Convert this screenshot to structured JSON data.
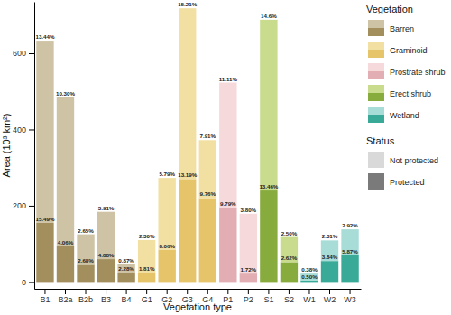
{
  "chart_data": {
    "type": "bar",
    "stacked": true,
    "x_label": "Vegetation type",
    "y_label": "Area (10³ km²)",
    "categories": [
      "B1",
      "B2a",
      "B2b",
      "B3",
      "B4",
      "G1",
      "G2",
      "G3",
      "G4",
      "P1",
      "P2",
      "S1",
      "S2",
      "W1",
      "W2",
      "W3"
    ],
    "ylim": [
      -18,
      735
    ],
    "yticks": [
      0,
      200,
      400,
      600
    ],
    "legend": "right",
    "series": [
      {
        "name": "Protected",
        "color": "#7a7a7a",
        "colors": [
          "#a38f5e",
          "#a38f5e",
          "#a38f5e",
          "#a38f5e",
          "#a38f5e",
          "#e6c46a",
          "#e6c46a",
          "#e6c46a",
          "#e6c46a",
          "#e2adb3",
          "#e2adb3",
          "#87ab3d",
          "#87ab3d",
          "#3aaa98",
          "#3aaa98",
          "#3aaa98"
        ],
        "values": [
          155,
          94,
          45,
          60,
          24,
          24,
          85,
          270,
          220,
          195,
          22,
          240,
          52,
          4,
          55,
          70
        ],
        "shares": [
          "15.49%",
          "4.06%",
          "2.68%",
          "4.88%",
          "2.28%",
          "1.81%",
          "8.06%",
          "13.19%",
          "9.76%",
          "9.79%",
          "1.72%",
          "13.46%",
          "2.62%",
          "0.50%",
          "3.84%",
          "5.87%"
        ]
      },
      {
        "name": "Not protected",
        "color": "#d9d9d9",
        "colors": [
          "#cfc3a5",
          "#cfc3a5",
          "#cfc3a5",
          "#cfc3a5",
          "#cfc3a5",
          "#f2e0a3",
          "#f2e0a3",
          "#f2e0a3",
          "#f2e0a3",
          "#f5d9db",
          "#f5d9db",
          "#c9dc8e",
          "#c9dc8e",
          "#a8ddd7",
          "#a8ddd7",
          "#a8ddd7"
        ],
        "values": [
          478,
          391,
          80,
          124,
          23,
          86,
          188,
          448,
          152,
          328,
          157,
          448,
          66,
          18,
          54,
          68
        ],
        "shares": [
          "13.44%",
          "10.30%",
          "2.65%",
          "3.91%",
          "0.87%",
          "2.30%",
          "5.79%",
          "15.21%",
          "7.91%",
          "11.11%",
          "3.80%",
          "14.6%",
          "2.50%",
          "0.38%",
          "2.31%",
          "2.92%"
        ]
      }
    ],
    "vegetation": {
      "title": "Vegetation",
      "names": [
        "Barren",
        "Graminoid",
        "Prostrate shrub",
        "Erect shrub",
        "Wetland"
      ],
      "colors": [
        [
          "#cfc3a5",
          "#a38f5e"
        ],
        [
          "#f2e0a3",
          "#e6c46a"
        ],
        [
          "#f5d9db",
          "#e2adb3"
        ],
        [
          "#c9dc8e",
          "#87ab3d"
        ],
        [
          "#a8ddd7",
          "#3aaa98"
        ]
      ]
    },
    "status": {
      "title": "Status"
    }
  }
}
